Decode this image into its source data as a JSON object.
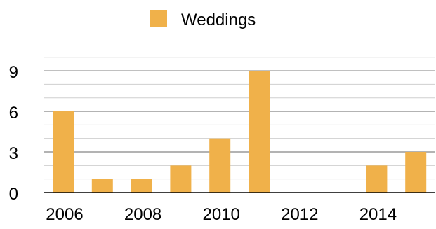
{
  "chart_data": {
    "type": "bar",
    "categories": [
      "2006",
      "2007",
      "2008",
      "2009",
      "2010",
      "2011",
      "2012",
      "2013",
      "2014",
      "2015"
    ],
    "series": [
      {
        "name": "Weddings",
        "values": [
          6,
          1,
          1,
          2,
          4,
          9,
          0,
          0,
          2,
          3
        ],
        "color": "#f0b14a"
      }
    ],
    "legend": {
      "label": "Weddings",
      "position": "top-center"
    },
    "ylim": [
      0,
      10
    ],
    "y_ticks": [
      "0",
      "3",
      "6",
      "9"
    ],
    "x_tick_labels": [
      "2006",
      "2008",
      "2010",
      "2012",
      "2014"
    ],
    "grid": true,
    "gridline_color": "#a8a8a8"
  }
}
